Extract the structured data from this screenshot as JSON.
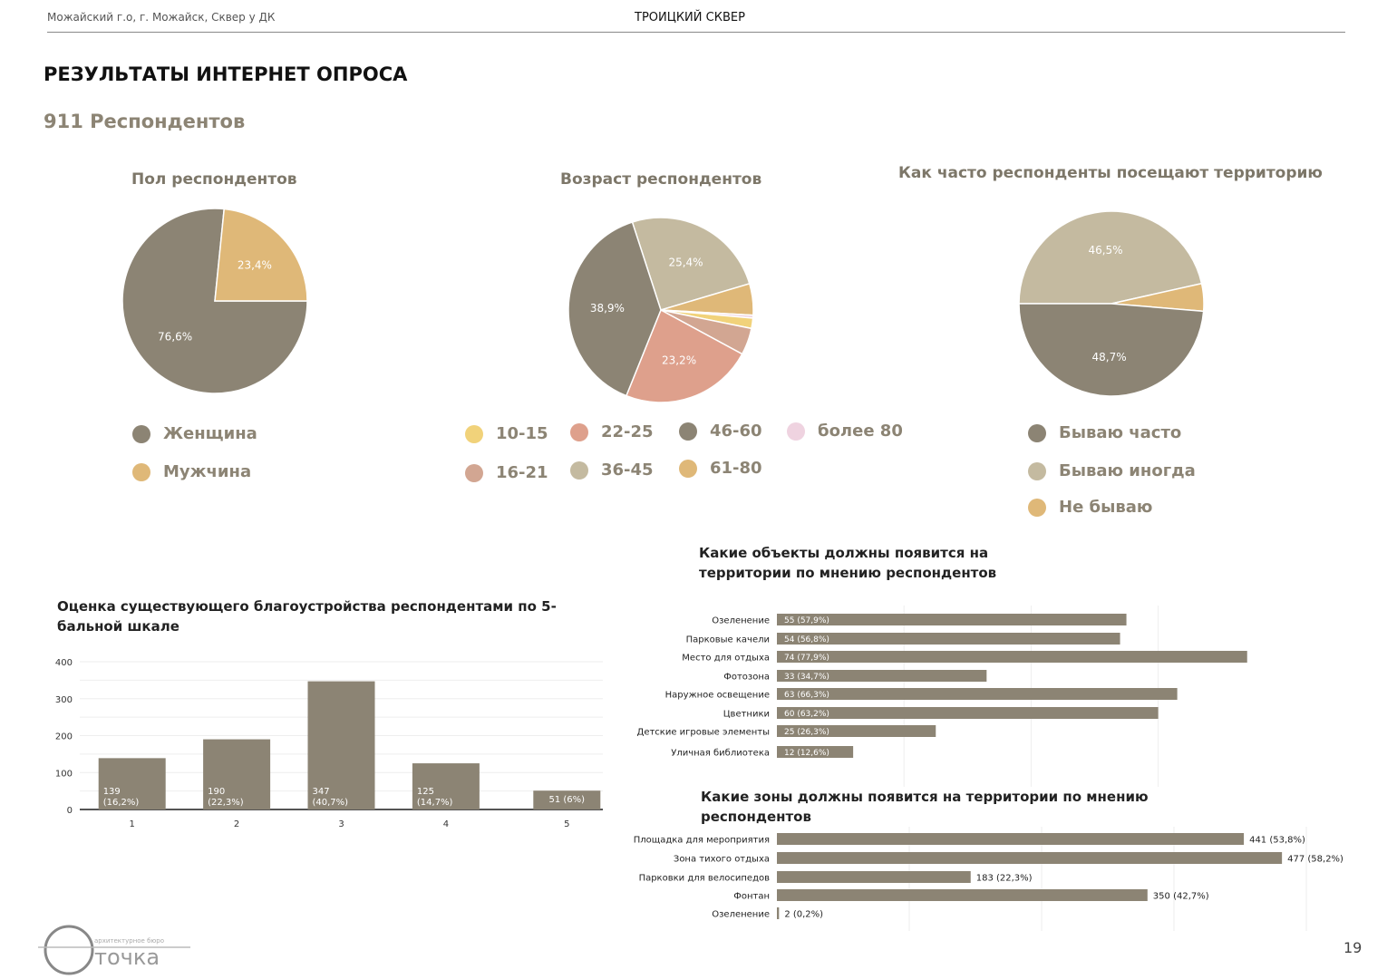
{
  "header": {
    "location": "Можайский г.о, г. Можайск, Сквер у ДК",
    "project": "ТРОИЦКИЙ СКВЕР"
  },
  "title": "РЕЗУЛЬТАТЫ ИНТЕРНЕТ ОПРОСА",
  "subtitle": "911 Респондентов",
  "page_number": "19",
  "logo": {
    "text": "точка",
    "tagline": "архитектурное бюро"
  },
  "colors": {
    "dark": "#8c8474",
    "beige": "#c4baa0",
    "gold": "#dfb878",
    "salmon": "#dea08c",
    "rose": "#d2a692",
    "yellow": "#f1d27a",
    "pink": "#efd3e0"
  },
  "chart_data": [
    {
      "type": "pie",
      "title": "Пол респондентов",
      "slices": [
        {
          "name": "Женщина",
          "value": 76.6,
          "label": "76,6%",
          "color": "#8c8474"
        },
        {
          "name": "Мужчина",
          "value": 23.4,
          "label": "23,4%",
          "color": "#dfb878"
        }
      ]
    },
    {
      "type": "pie",
      "title": "Возраст респондентов",
      "slices": [
        {
          "name": "36-45",
          "value": 25.4,
          "label": "25,4%",
          "color": "#c4baa0"
        },
        {
          "name": "61-80",
          "value": 5.5,
          "label": "",
          "color": "#dfb878"
        },
        {
          "name": "более 80",
          "value": 0.5,
          "label": "",
          "color": "#efd3e0"
        },
        {
          "name": "10-15",
          "value": 1.8,
          "label": "",
          "color": "#f1d27a"
        },
        {
          "name": "16-21",
          "value": 4.7,
          "label": "",
          "color": "#d2a692"
        },
        {
          "name": "22-25",
          "value": 23.2,
          "label": "23,2%",
          "color": "#dea08c"
        },
        {
          "name": "46-60",
          "value": 38.9,
          "label": "38,9%",
          "color": "#8c8474"
        }
      ],
      "legend_order": [
        "10-15",
        "22-25",
        "46-60",
        "более 80",
        "16-21",
        "36-45",
        "61-80"
      ]
    },
    {
      "type": "pie",
      "title": "Как часто респонденты посещают территорию",
      "slices": [
        {
          "name": "Бываю иногда",
          "value": 46.5,
          "label": "46,5%",
          "color": "#c4baa0"
        },
        {
          "name": "Не бываю",
          "value": 4.8,
          "label": "",
          "color": "#dfb878"
        },
        {
          "name": "Бываю часто",
          "value": 48.7,
          "label": "48,7%",
          "color": "#8c8474"
        }
      ],
      "legend_order": [
        "Бываю часто",
        "Бываю иногда",
        "Не бываю"
      ]
    },
    {
      "type": "bar",
      "title": "Оценка существующего благоустройства респондентами по 5-бальной шкале",
      "categories": [
        "1",
        "2",
        "3",
        "4",
        "5"
      ],
      "values": [
        139,
        190,
        347,
        125,
        51
      ],
      "labels": [
        "139 (16,2%)",
        "190 (22,3%)",
        "347 (40,7%)",
        "125 (14,7%)",
        "51 (6%)"
      ],
      "yticks": [
        0,
        100,
        200,
        300,
        400
      ],
      "ylim": [
        0,
        400
      ],
      "grid": true
    },
    {
      "type": "bar",
      "orientation": "horizontal",
      "title": "Какие объекты должны появится на территории по мнению респондентов",
      "categories": [
        "Озеленение",
        "Парковые качели",
        "Место для отдыха",
        "Фотозона",
        "Наружное освещение",
        "Цветники",
        "Детские игровые элементы",
        "Уличная библиотека"
      ],
      "values": [
        55,
        54,
        74,
        33,
        63,
        60,
        25,
        12
      ],
      "labels": [
        "55 (57,9%)",
        "54 (56,8%)",
        "74 (77,9%)",
        "33 (34,7%)",
        "63 (66,3%)",
        "60 (63,2%)",
        "25 (26,3%)",
        "12 (12,6%)"
      ],
      "xlim": [
        0,
        80
      ],
      "grid": true
    },
    {
      "type": "bar",
      "orientation": "horizontal",
      "title": "Какие зоны должны появится на территории по мнению респондентов",
      "categories": [
        "Площадка для мероприятия",
        "Зона тихого отдыха",
        "Парковки для велосипедов",
        "Фонтан",
        "Озеленение"
      ],
      "values": [
        441,
        477,
        183,
        350,
        2
      ],
      "labels": [
        "441 (53,8%)",
        "477 (58,2%)",
        "183 (22,3%)",
        "350 (42,7%)",
        "2 (0,2%)"
      ],
      "xlim": [
        0,
        500
      ],
      "grid": true
    }
  ]
}
